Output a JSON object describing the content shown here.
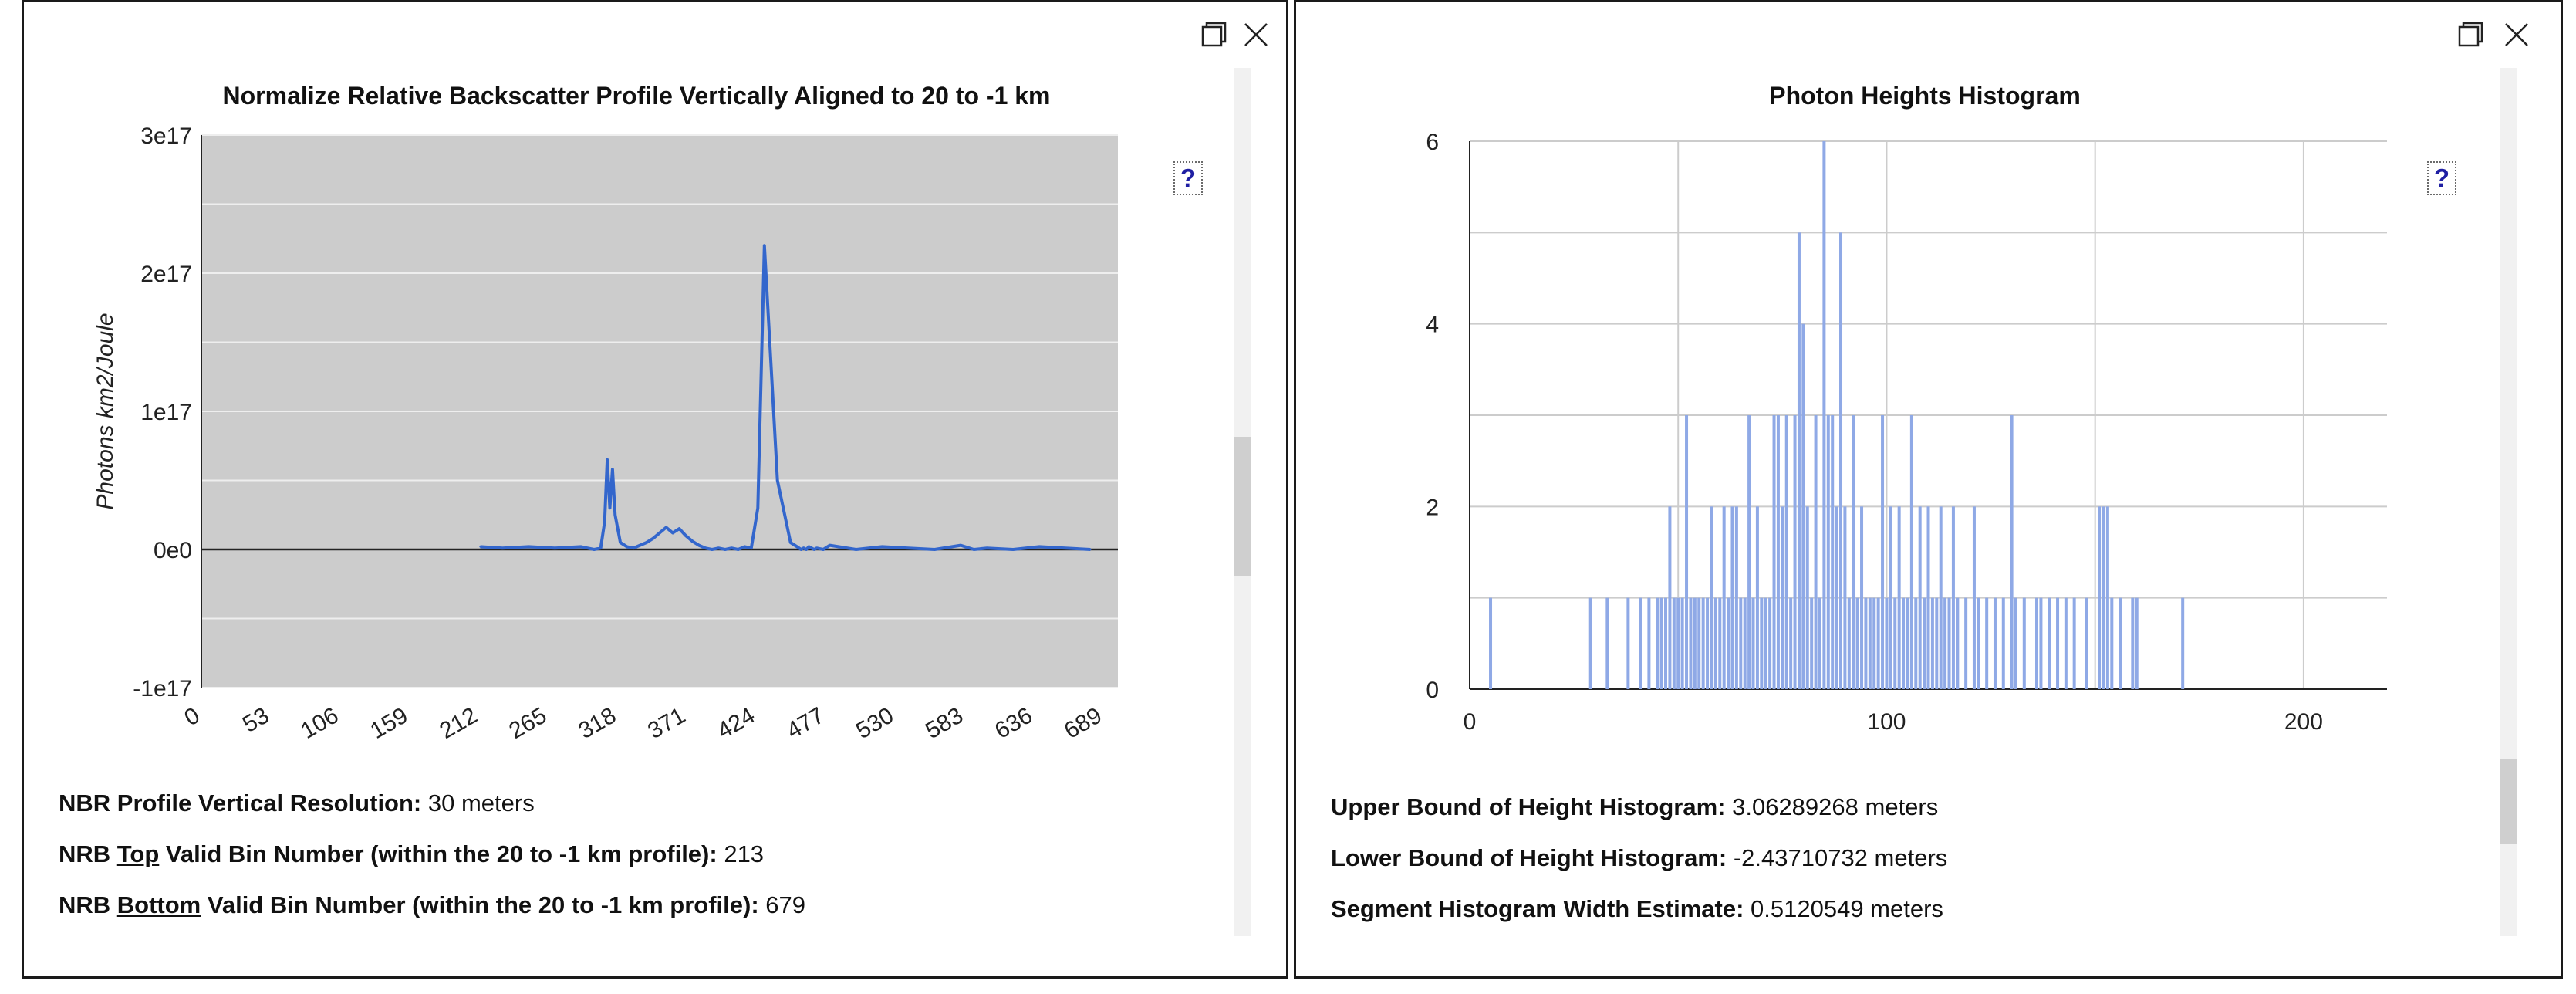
{
  "left_panel": {
    "help_label": "?",
    "info": {
      "resolution_label": "NBR Profile Vertical Resolution:",
      "resolution_value": "30 meters",
      "top_prefix": "NRB ",
      "top_word": "Top",
      "top_suffix": " Valid Bin Number (within the 20 to -1 km profile):",
      "top_value": "213",
      "bottom_prefix": "NRB ",
      "bottom_word": "Bottom",
      "bottom_suffix": " Valid Bin Number (within the 20 to -1 km profile):",
      "bottom_value": "679"
    }
  },
  "right_panel": {
    "help_label": "?",
    "info": {
      "upper_label": "Upper Bound of Height Histogram:",
      "upper_value": "3.06289268 meters",
      "lower_label": "Lower Bound of Height Histogram:",
      "lower_value": "-2.43710732 meters",
      "width_label": "Segment Histogram Width Estimate:",
      "width_value": "0.5120549 meters"
    }
  },
  "colors": {
    "series": "#3366cc",
    "bars": "#8fa9e6",
    "plot_bg_left": "#cccccc",
    "grid_left": "#eeeeee",
    "grid_right": "#cccccc",
    "help": "#1f1fa3"
  },
  "chart_data": [
    {
      "type": "line",
      "title": "Normalize Relative Backscatter Profile Vertically Aligned to 20 to -1 km",
      "xlabel": "",
      "ylabel": "Photons km2/Joule",
      "xlim": [
        0,
        700
      ],
      "ylim": [
        -1e+17,
        3e+17
      ],
      "x_ticks": [
        0,
        53,
        106,
        159,
        212,
        265,
        318,
        371,
        424,
        477,
        530,
        583,
        636,
        689
      ],
      "y_ticks": [
        -1e+17,
        0,
        1e+17,
        2e+17,
        3e+17
      ],
      "y_tick_labels": [
        "-1e17",
        "0e0",
        "1e17",
        "2e17",
        "3e17"
      ],
      "grid": true,
      "legend": "none",
      "series": [
        {
          "x": [
            213,
            230,
            250,
            270,
            290,
            300,
            305,
            308,
            310,
            312,
            314,
            316,
            318,
            320,
            325,
            330,
            335,
            340,
            345,
            350,
            355,
            360,
            365,
            370,
            375,
            380,
            385,
            390,
            395,
            400,
            405,
            410,
            415,
            420,
            425,
            430,
            440,
            450,
            455,
            458,
            460,
            462,
            464,
            466,
            468,
            470,
            475,
            480,
            500,
            520,
            540,
            560,
            580,
            590,
            600,
            620,
            640,
            660,
            679
          ],
          "y": [
            2000000000000000.0,
            1000000000000000.0,
            2000000000000000.0,
            1000000000000000.0,
            2000000000000000.0,
            0,
            1000000000000000.0,
            2e+16,
            6.5e+16,
            3e+16,
            5.8e+16,
            2.5e+16,
            1.5e+16,
            5000000000000000.0,
            2000000000000000.0,
            1000000000000000.0,
            3000000000000000.0,
            5000000000000000.0,
            8000000000000000.0,
            1.2e+16,
            1.6e+16,
            1.2e+16,
            1.5e+16,
            1e+16,
            6000000000000000.0,
            3000000000000000.0,
            1000000000000000.0,
            0,
            1000000000000000.0,
            0,
            1000000000000000.0,
            0,
            2000000000000000.0,
            1000000000000000.0,
            3e+16,
            2.2e+17,
            5e+16,
            5000000000000000.0,
            2000000000000000.0,
            0,
            1000000000000000.0,
            0,
            2000000000000000.0,
            1000000000000000.0,
            0,
            1000000000000000.0,
            0,
            3000000000000000.0,
            0,
            2000000000000000.0,
            1000000000000000.0,
            0,
            3000000000000000.0,
            0,
            1000000000000000.0,
            0,
            2000000000000000.0,
            1000000000000000.0,
            0
          ]
        }
      ]
    },
    {
      "type": "bar",
      "title": "Photon Heights Histogram",
      "xlabel": "",
      "ylabel": "",
      "xlim": [
        0,
        220
      ],
      "ylim": [
        0,
        6
      ],
      "x_ticks": [
        0,
        100,
        200
      ],
      "y_ticks": [
        0,
        2,
        4,
        6
      ],
      "grid": true,
      "legend": "none",
      "x": [
        5,
        29,
        33,
        38,
        41,
        43,
        45,
        46,
        47,
        48,
        49,
        50,
        51,
        52,
        53,
        54,
        55,
        56,
        57,
        58,
        59,
        60,
        61,
        62,
        63,
        64,
        65,
        66,
        67,
        68,
        69,
        70,
        71,
        72,
        73,
        74,
        75,
        76,
        77,
        78,
        79,
        80,
        81,
        82,
        83,
        84,
        85,
        86,
        87,
        88,
        89,
        90,
        91,
        92,
        93,
        94,
        95,
        96,
        97,
        98,
        99,
        100,
        101,
        102,
        103,
        104,
        105,
        106,
        107,
        108,
        109,
        110,
        111,
        112,
        113,
        114,
        115,
        116,
        117,
        119,
        121,
        122,
        124,
        126,
        128,
        130,
        131,
        133,
        136,
        137,
        139,
        141,
        143,
        145,
        148,
        151,
        152,
        153,
        154,
        156,
        159,
        160,
        171
      ],
      "values": [
        1,
        1,
        1,
        1,
        1,
        1,
        1,
        1,
        1,
        2,
        1,
        1,
        1,
        3,
        1,
        1,
        1,
        1,
        1,
        2,
        1,
        1,
        2,
        1,
        2,
        2,
        1,
        1,
        3,
        1,
        2,
        1,
        1,
        1,
        3,
        3,
        2,
        3,
        1,
        3,
        5,
        4,
        2,
        1,
        3,
        1,
        6,
        3,
        3,
        2,
        5,
        2,
        1,
        3,
        1,
        2,
        1,
        1,
        1,
        1,
        3,
        1,
        2,
        1,
        2,
        1,
        1,
        3,
        1,
        2,
        1,
        2,
        1,
        1,
        2,
        1,
        1,
        2,
        1,
        1,
        2,
        1,
        1,
        1,
        1,
        3,
        1,
        1,
        1,
        1,
        1,
        1,
        1,
        1,
        1,
        2,
        2,
        2,
        1,
        1,
        1,
        1,
        1
      ]
    }
  ]
}
